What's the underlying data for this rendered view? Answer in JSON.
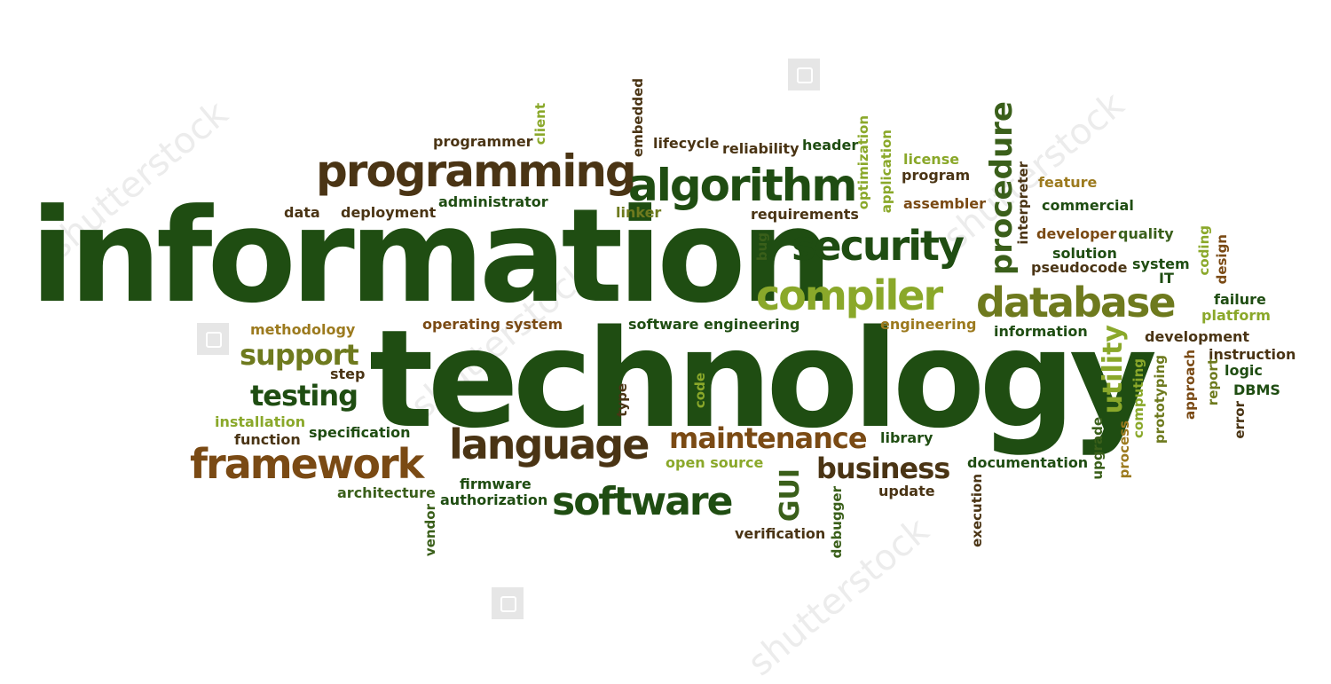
{
  "palette": {
    "dark_green": "#1f4d12",
    "mid_green": "#3a5f1a",
    "brown": "#5c3b14",
    "olive": "#6e7a1e",
    "light_green": "#8aa82a",
    "ochre": "#9c7a1e"
  },
  "words": {
    "information": "information",
    "technology": "technology",
    "programming": "programming",
    "algorithm": "algorithm",
    "security": "security",
    "compiler": "compiler",
    "database": "database",
    "procedure": "procedure",
    "framework": "framework",
    "language": "language",
    "software": "software",
    "maintenance": "maintenance",
    "business": "business",
    "support": "support",
    "testing": "testing",
    "utility": "utility",
    "gui": "GUI",
    "programmer": "programmer",
    "client": "client",
    "embedded": "embedded",
    "lifecycle": "lifecycle",
    "reliability": "reliability",
    "header": "header",
    "optimization": "optimization",
    "application": "application",
    "license": "license",
    "program": "program",
    "interpreter": "interpreter",
    "feature": "feature",
    "data": "data",
    "deployment": "deployment",
    "administrator": "administrator",
    "linker": "linker",
    "requirements": "requirements",
    "assembler": "assembler",
    "commercial": "commercial",
    "developer": "developer",
    "quality": "quality",
    "solution": "solution",
    "pseudocode": "pseudocode",
    "system": "system",
    "it": "IT",
    "coding": "coding",
    "design": "design",
    "bug": "bug",
    "failure": "failure",
    "platform": "platform",
    "methodology": "methodology",
    "operating_system": "operating system",
    "software_engineering": "software engineering",
    "engineering": "engineering",
    "information_small": "information",
    "development": "development",
    "instruction": "instruction",
    "logic": "logic",
    "dbms": "DBMS",
    "step": "step",
    "installation": "installation",
    "function": "function",
    "specification": "specification",
    "architecture": "architecture",
    "firmware": "firmware",
    "authorization": "authorization",
    "vendor": "vendor",
    "open_source": "open source",
    "library": "library",
    "documentation": "documentation",
    "update": "update",
    "execution": "execution",
    "debugger": "debugger",
    "verification": "verification",
    "type": "type",
    "code": "code",
    "upgrade": "upgrade",
    "process": "process",
    "computing": "computing",
    "prototyping": "prototyping",
    "approach": "approach",
    "report": "report",
    "error": "error"
  }
}
